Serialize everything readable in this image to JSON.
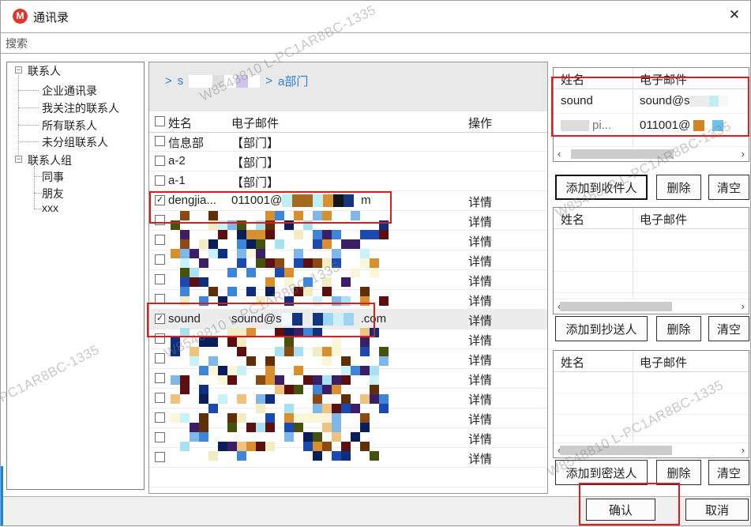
{
  "window": {
    "title": "通讯录",
    "logo_letter": "M",
    "close_glyph": "✕"
  },
  "search": {
    "placeholder": "搜索"
  },
  "sidebar": {
    "items": [
      {
        "label": "联系人",
        "level": 0,
        "expander": "−"
      },
      {
        "label": "企业通讯录",
        "level": 1
      },
      {
        "label": "我关注的联系人",
        "level": 1
      },
      {
        "label": "所有联系人",
        "level": 1
      },
      {
        "label": "未分组联系人",
        "level": 1
      },
      {
        "label": "联系人组",
        "level": 0,
        "expander": "−"
      },
      {
        "label": "同事",
        "level": 1
      },
      {
        "label": "朋友",
        "level": 1
      },
      {
        "label": "xxx",
        "level": 1
      }
    ]
  },
  "breadcrumb": {
    "sep": ">",
    "first_prefix": "s",
    "second": "a部门"
  },
  "table": {
    "headers": {
      "name": "姓名",
      "email": "电子邮件",
      "op": "操作"
    },
    "rows": [
      {
        "type": "dept",
        "name": "信息部",
        "email": "【部门】"
      },
      {
        "type": "dept",
        "name": "a-2",
        "email": "【部门】"
      },
      {
        "type": "dept",
        "name": "a-1",
        "email": "【部门】"
      },
      {
        "type": "contact",
        "checked": true,
        "name": "dengjia...",
        "email_prefix": "011001@",
        "email_suffix": "m",
        "op": "详情"
      },
      {
        "type": "censored",
        "op": "详情"
      },
      {
        "type": "censored",
        "op": "详情"
      },
      {
        "type": "censored",
        "op": "详情"
      },
      {
        "type": "censored",
        "op": "详情"
      },
      {
        "type": "censored",
        "op": "详情"
      },
      {
        "type": "contact",
        "checked": true,
        "selected": true,
        "name": "sound",
        "email_prefix": "sound@s",
        "email_suffix": ".com",
        "op": "详情"
      },
      {
        "type": "censored",
        "op": "详情"
      },
      {
        "type": "censored",
        "op": "详情"
      },
      {
        "type": "censored",
        "op": "详情"
      },
      {
        "type": "censored",
        "op": "详情"
      },
      {
        "type": "censored",
        "op": "详情"
      },
      {
        "type": "censored",
        "op": "详情"
      },
      {
        "type": "censored",
        "op": "详情"
      },
      {
        "type": "empty"
      },
      {
        "type": "empty"
      }
    ]
  },
  "right_panels": [
    {
      "id": "recipients",
      "headers": {
        "name": "姓名",
        "email": "电子邮件"
      },
      "rows": [
        {
          "name": "sound",
          "email_prefix": "sound@s"
        },
        {
          "name_suffix": "pi...",
          "email_prefix": "011001@"
        }
      ],
      "buttons": {
        "add": "添加到收件人",
        "delete": "删除",
        "clear": "清空"
      },
      "scroll": {
        "left": "‹",
        "right": "›"
      }
    },
    {
      "id": "cc",
      "headers": {
        "name": "姓名",
        "email": "电子邮件"
      },
      "rows": [],
      "buttons": {
        "add": "添加到抄送人",
        "delete": "删除",
        "clear": "清空"
      },
      "scroll": {
        "left": "‹",
        "right": "›"
      }
    },
    {
      "id": "bcc",
      "headers": {
        "name": "姓名",
        "email": "电子邮件"
      },
      "rows": [],
      "buttons": {
        "add": "添加到密送人",
        "delete": "删除",
        "clear": "清空"
      },
      "scroll": {
        "left": "‹",
        "right": "›"
      }
    }
  ],
  "footer": {
    "confirm": "确认",
    "cancel": "取消"
  },
  "watermark": {
    "text": "W8548810 L-PC1AR8BC-1335"
  },
  "colors": {
    "accent_red": "#e01b1b",
    "link_blue": "#2b7fe0",
    "logo_red": "#d93a2c",
    "mosaic_palette": [
      "#0d2f7d",
      "#1b49b0",
      "#3d85d9",
      "#7fb8e8",
      "#a8e2f0",
      "#c9f2f8",
      "#d8902f",
      "#eec37f",
      "#8a4a12",
      "#5e2f08",
      "#5c0f10",
      "#44520e",
      "#f2ecc2",
      "#fbf6d8",
      "#3a1f66",
      "#0a1f5a"
    ],
    "light_palette": [
      "#ededed",
      "#f7f7f7",
      "#dcdcdc",
      "#cfe8f2",
      "#bfeef5"
    ],
    "breadcrumb_palette": [
      "#ffffff",
      "#dedede",
      "#cfc6ef",
      "#f2f2f2"
    ],
    "dengjia_palette": [
      "#a66a1f",
      "#16357f",
      "#bfeef5",
      "#0d2f7d",
      "#7fb8e8",
      "#141414",
      "#d98f33"
    ],
    "sound_palette": [
      "#cfeef5",
      "#f2fafc",
      "#9fd4f0",
      "#12357f",
      "#0d2f7d"
    ],
    "orange_cell": "#d08428",
    "sky_cell": "#6fc1ea"
  }
}
